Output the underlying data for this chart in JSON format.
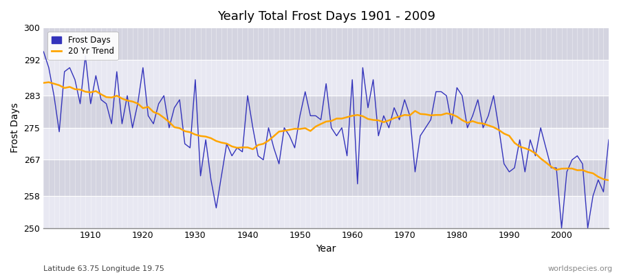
{
  "title": "Yearly Total Frost Days 1901 - 2009",
  "xlabel": "Year",
  "ylabel": "Frost Days",
  "ylim": [
    250,
    300
  ],
  "yticks": [
    250,
    258,
    267,
    275,
    283,
    292,
    300
  ],
  "xticks": [
    1910,
    1920,
    1930,
    1940,
    1950,
    1960,
    1970,
    1980,
    1990,
    2000
  ],
  "legend_labels": [
    "Frost Days",
    "20 Yr Trend"
  ],
  "frost_color": "#3333bb",
  "trend_color": "#ffa500",
  "bg_color": "#dcdce8",
  "band_color_light": "#e8e8f2",
  "band_color_dark": "#d4d4e0",
  "grid_color": "#ffffff",
  "subtitle_left": "Latitude 63.75 Longitude 19.75",
  "subtitle_right": "worldspecies.org",
  "years": [
    1901,
    1902,
    1903,
    1904,
    1905,
    1906,
    1907,
    1908,
    1909,
    1910,
    1911,
    1912,
    1913,
    1914,
    1915,
    1916,
    1917,
    1918,
    1919,
    1920,
    1921,
    1922,
    1923,
    1924,
    1925,
    1926,
    1927,
    1928,
    1929,
    1930,
    1931,
    1932,
    1933,
    1934,
    1935,
    1936,
    1937,
    1938,
    1939,
    1940,
    1941,
    1942,
    1943,
    1944,
    1945,
    1946,
    1947,
    1948,
    1949,
    1950,
    1951,
    1952,
    1953,
    1954,
    1955,
    1956,
    1957,
    1958,
    1959,
    1960,
    1961,
    1962,
    1963,
    1964,
    1965,
    1966,
    1967,
    1968,
    1969,
    1970,
    1971,
    1972,
    1973,
    1974,
    1975,
    1976,
    1977,
    1978,
    1979,
    1980,
    1981,
    1982,
    1983,
    1984,
    1985,
    1986,
    1987,
    1988,
    1989,
    1990,
    1991,
    1992,
    1993,
    1994,
    1995,
    1996,
    1997,
    1998,
    1999,
    2000,
    2001,
    2002,
    2003,
    2004,
    2005,
    2006,
    2007,
    2008,
    2009
  ],
  "frost_days": [
    294,
    290,
    283,
    274,
    289,
    290,
    287,
    281,
    293,
    281,
    288,
    282,
    281,
    276,
    289,
    276,
    283,
    275,
    281,
    290,
    278,
    276,
    281,
    283,
    275,
    280,
    282,
    271,
    270,
    287,
    263,
    272,
    262,
    255,
    263,
    271,
    268,
    270,
    269,
    283,
    275,
    268,
    267,
    275,
    270,
    266,
    275,
    273,
    270,
    278,
    284,
    278,
    278,
    277,
    286,
    275,
    273,
    275,
    268,
    287,
    261,
    290,
    280,
    287,
    273,
    278,
    275,
    280,
    277,
    282,
    278,
    264,
    273,
    275,
    277,
    284,
    284,
    283,
    276,
    285,
    283,
    275,
    278,
    282,
    275,
    278,
    283,
    275,
    266,
    264,
    265,
    272,
    264,
    272,
    268,
    275,
    270,
    265,
    265,
    250,
    264,
    267,
    268,
    266,
    250,
    258,
    262,
    259,
    272
  ]
}
